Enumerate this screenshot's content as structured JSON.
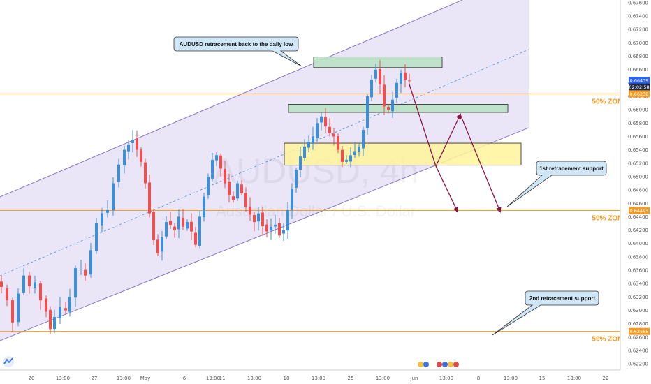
{
  "chart_data": {
    "type": "candlestick",
    "symbol": "AUDUSD, 4h",
    "instrument_name": "Australian Dollar / U.S. Dollar",
    "y_ticks": [
      "0.67600",
      "0.67400",
      "0.67200",
      "0.67000",
      "0.66800",
      "0.66600",
      "0.66400",
      "0.66200",
      "0.66000",
      "0.65800",
      "0.65600",
      "0.65400",
      "0.65200",
      "0.65000",
      "0.64800",
      "0.64600",
      "0.64400",
      "0.64200",
      "0.64000",
      "0.63800",
      "0.63600",
      "0.63400",
      "0.63200",
      "0.63000",
      "0.62800",
      "0.62600",
      "0.62400",
      "0.62200"
    ],
    "ylim": [
      0.6217,
      0.6762
    ],
    "x_ticks": [
      "20",
      "13:00",
      "27",
      "13:00",
      "May",
      "6",
      "13:00",
      "11",
      "13:00",
      "18",
      "13:00",
      "25",
      "13:00",
      "Jun",
      "13:00",
      "8",
      "13:00",
      "15",
      "13:00",
      "22"
    ],
    "price_badges": [
      {
        "value": 0.66439,
        "label": "0.66439",
        "color": "#2962ff"
      },
      {
        "value": 0.6634,
        "label": "02:02:58",
        "color": "#1e2a4a"
      },
      {
        "value": 0.66238,
        "label": "0.66238",
        "color": "#f59a23"
      },
      {
        "value": 0.64493,
        "label": "0.64493",
        "color": "#f59a23"
      },
      {
        "value": 0.62685,
        "label": "0.62685",
        "color": "#f59a23"
      }
    ],
    "horizontal_levels": [
      {
        "value": 0.66238,
        "label": "50% ZONE"
      },
      {
        "value": 0.64493,
        "label": "50% ZONE"
      },
      {
        "value": 0.62685,
        "label": "50% ZONE"
      }
    ],
    "zones": [
      {
        "color": "green",
        "y_top": 0.6679,
        "y_bottom": 0.6663
      },
      {
        "color": "green",
        "y_top": 0.6608,
        "y_bottom": 0.6596
      },
      {
        "color": "yellow",
        "y_top": 0.655,
        "y_bottom": 0.6517
      }
    ],
    "callouts": [
      "AUDUSD retracement back to the daily low",
      "1st retracement support",
      "2nd retracement support"
    ],
    "channel_note": "ascending channel"
  },
  "colors": {
    "up": "#3d8fd6",
    "down": "#ef4f4f",
    "level": "#f59a23",
    "channel_fill": "#d9cff0",
    "channel_line": "#7d6bbf",
    "arrow": "#8a1540",
    "green_zone": "#b9e2c4",
    "yellow_zone": "#fff59a",
    "callout_bg": "#cfe6f7"
  }
}
